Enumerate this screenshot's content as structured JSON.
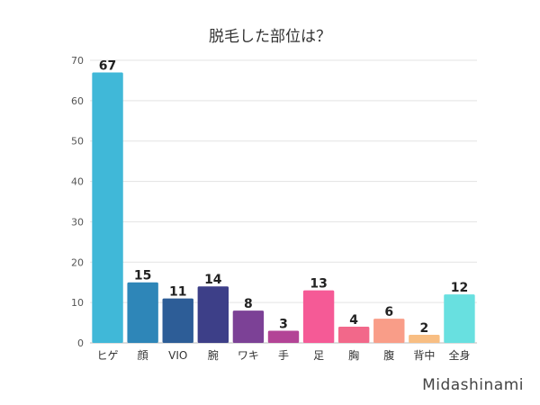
{
  "chart_data": {
    "type": "bar",
    "title": "脱毛した部位は？",
    "xlabel": "",
    "ylabel": "",
    "ylim": [
      0,
      70
    ],
    "yticks": [
      0,
      10,
      20,
      30,
      40,
      50,
      60,
      70
    ],
    "grid": true,
    "categories": [
      "ヒゲ",
      "顔",
      "VIO",
      "腕",
      "ワキ",
      "手",
      "足",
      "胸",
      "腹",
      "背中",
      "全身"
    ],
    "values": [
      67,
      15,
      11,
      14,
      8,
      3,
      13,
      4,
      6,
      2,
      12
    ],
    "colors": [
      "#40b8d8",
      "#2e86b8",
      "#2d5d97",
      "#3d3f88",
      "#7c4196",
      "#b34496",
      "#f55a96",
      "#f2688a",
      "#f99d88",
      "#f8be83",
      "#68e0e0"
    ]
  },
  "watermark": "Midashinami"
}
